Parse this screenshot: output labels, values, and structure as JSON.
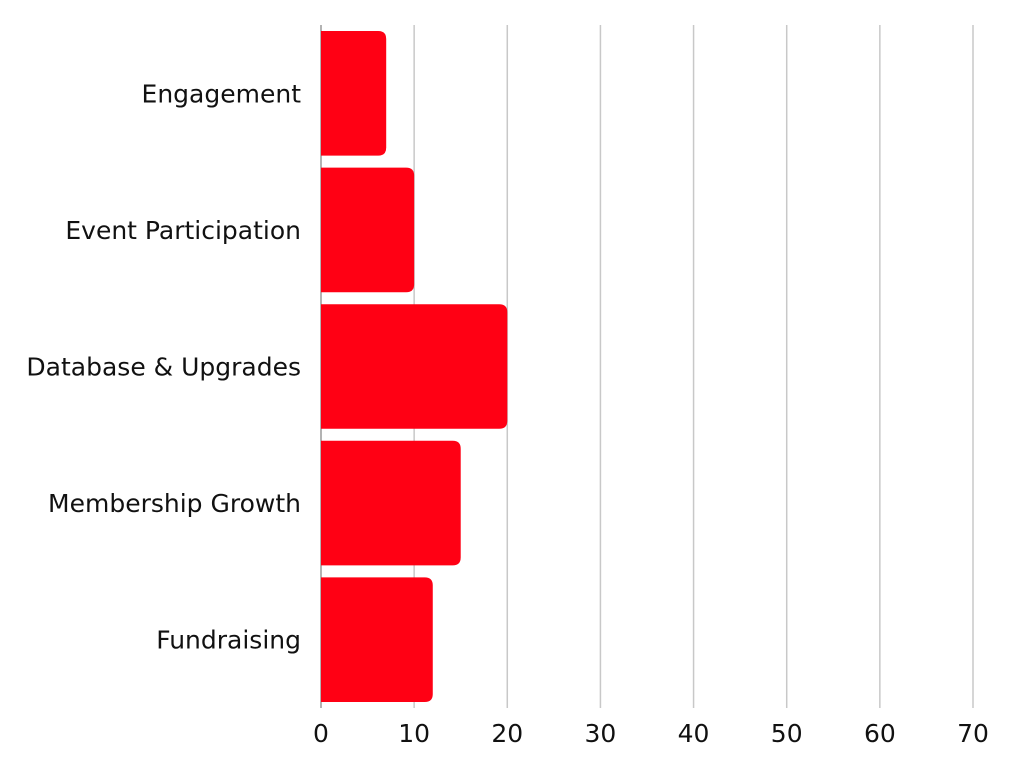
{
  "chart_data": {
    "type": "bar",
    "orientation": "horizontal",
    "categories": [
      "Engagement",
      "Event Participation",
      "Database & Upgrades",
      "Membership Growth",
      "Fundraising"
    ],
    "values": [
      7,
      10,
      20,
      15,
      12
    ],
    "xlim": [
      0,
      70
    ],
    "xticks": [
      "0",
      "10",
      "20",
      "30",
      "40",
      "50",
      "60",
      "70"
    ],
    "title": "",
    "xlabel": "",
    "ylabel": "",
    "grid": "vertical",
    "legend": "none",
    "bar_color": "#ff0014"
  }
}
